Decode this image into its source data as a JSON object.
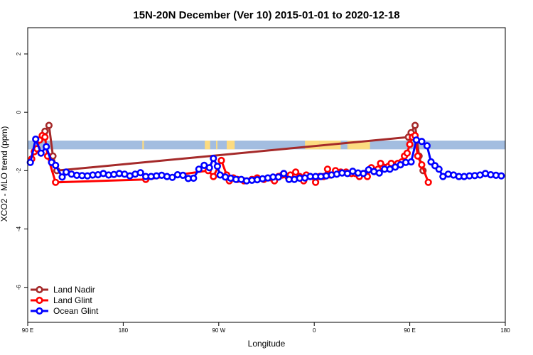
{
  "chart_data": {
    "type": "line",
    "title": "15N-20N December (Ver 10)   2015-01-01 to 2020-12-18",
    "xlabel": "Longitude",
    "ylabel": "XCO2 - MLO trend (ppm)",
    "xlim": [
      90,
      450
    ],
    "ylim": [
      -7.2,
      2.9
    ],
    "x_ticks": [
      {
        "value": 90,
        "label": "90 E"
      },
      {
        "value": 162,
        "label": "180"
      },
      {
        "value": 234,
        "label": "90 W"
      },
      {
        "value": 306,
        "label": "0"
      },
      {
        "value": 378,
        "label": "90 E"
      },
      {
        "value": 450,
        "label": "180"
      }
    ],
    "y_ticks": [
      {
        "value": 2,
        "label": "2"
      },
      {
        "value": 0,
        "label": "0"
      },
      {
        "value": -2,
        "label": "-2"
      },
      {
        "value": -4,
        "label": "-4"
      },
      {
        "value": -6,
        "label": "-6"
      }
    ],
    "background_band": {
      "y_center": -1.12,
      "y_half_height": 0.15,
      "ocean_color": "#a3bde0",
      "land_color": "#fcdb80",
      "land_segments": [
        [
          176.4,
          177.6
        ],
        [
          223.5,
          227.5
        ],
        [
          232,
          233
        ],
        [
          240,
          246
        ],
        [
          299,
          310
        ],
        [
          310,
          326
        ],
        [
          331,
          332
        ],
        [
          332,
          348
        ]
      ]
    },
    "series": [
      {
        "name": "Land Nadir",
        "color": "#a52a2a",
        "points": [
          [
            101,
            -0.8
          ],
          [
            103,
            -0.65
          ],
          [
            106,
            -0.45
          ],
          [
            109,
            -1.5
          ],
          [
            112,
            -2.0
          ],
          [
            377,
            -0.85
          ],
          [
            379,
            -0.7
          ],
          [
            382,
            -0.45
          ],
          [
            385,
            -1.5
          ],
          [
            388,
            -2.0
          ]
        ]
      },
      {
        "name": "Land Glint",
        "color": "#ff0000",
        "points": [
          [
            93,
            -1.6
          ],
          [
            95,
            -1.35
          ],
          [
            97,
            -1.25
          ],
          [
            99,
            -0.95
          ],
          [
            101,
            -0.8
          ],
          [
            103,
            -0.85
          ],
          [
            105,
            -1.5
          ],
          [
            111,
            -2.4
          ],
          [
            179,
            -2.3
          ],
          [
            226,
            -2.0
          ],
          [
            230,
            -2.2
          ],
          [
            236,
            -1.65
          ],
          [
            240,
            -2.15
          ],
          [
            242,
            -2.35
          ],
          [
            245,
            -2.25
          ],
          [
            248,
            -2.3
          ],
          [
            253,
            -2.35
          ],
          [
            259,
            -2.3
          ],
          [
            263,
            -2.25
          ],
          [
            268,
            -2.3
          ],
          [
            276,
            -2.35
          ],
          [
            279,
            -2.2
          ],
          [
            282,
            -2.15
          ],
          [
            286,
            -2.2
          ],
          [
            288,
            -2.15
          ],
          [
            292,
            -2.05
          ],
          [
            295,
            -2.2
          ],
          [
            298,
            -2.35
          ],
          [
            300,
            -2.15
          ],
          [
            303,
            -2.2
          ],
          [
            307,
            -2.4
          ],
          [
            310,
            -2.2
          ],
          [
            313,
            -2.2
          ],
          [
            316,
            -1.95
          ],
          [
            318,
            -2.15
          ],
          [
            322,
            -2.0
          ],
          [
            326,
            -2.05
          ],
          [
            330,
            -2.05
          ],
          [
            334,
            -2.1
          ],
          [
            337,
            -2.1
          ],
          [
            340,
            -2.2
          ],
          [
            344,
            -2.1
          ],
          [
            346,
            -2.2
          ],
          [
            349,
            -1.9
          ],
          [
            354,
            -1.95
          ],
          [
            356,
            -1.75
          ],
          [
            362,
            -1.85
          ],
          [
            364,
            -1.75
          ],
          [
            369,
            -1.75
          ],
          [
            372,
            -1.7
          ],
          [
            374,
            -1.5
          ],
          [
            376,
            -1.4
          ],
          [
            378,
            -1.1
          ],
          [
            380,
            -0.85
          ],
          [
            382,
            -0.8
          ],
          [
            384,
            -1.5
          ],
          [
            387,
            -1.8
          ],
          [
            392,
            -2.4
          ]
        ]
      },
      {
        "name": "Ocean Glint",
        "color": "#0000ff",
        "points": [
          [
            92,
            -1.72
          ],
          [
            96,
            -0.92
          ],
          [
            100,
            -1.4
          ],
          [
            104,
            -1.18
          ],
          [
            108,
            -1.72
          ],
          [
            111,
            -1.82
          ],
          [
            116,
            -2.22
          ],
          [
            119,
            -2.05
          ],
          [
            123,
            -2.12
          ],
          [
            127,
            -2.16
          ],
          [
            131,
            -2.17
          ],
          [
            135,
            -2.18
          ],
          [
            139,
            -2.15
          ],
          [
            143,
            -2.14
          ],
          [
            147,
            -2.1
          ],
          [
            151,
            -2.15
          ],
          [
            155,
            -2.13
          ],
          [
            159,
            -2.1
          ],
          [
            163,
            -2.12
          ],
          [
            167,
            -2.18
          ],
          [
            171,
            -2.12
          ],
          [
            175,
            -2.07
          ],
          [
            179,
            -2.2
          ],
          [
            183,
            -2.2
          ],
          [
            187,
            -2.18
          ],
          [
            191,
            -2.16
          ],
          [
            195,
            -2.2
          ],
          [
            199,
            -2.23
          ],
          [
            203,
            -2.14
          ],
          [
            207,
            -2.16
          ],
          [
            211,
            -2.27
          ],
          [
            215,
            -2.26
          ],
          [
            219,
            -1.95
          ],
          [
            223,
            -1.82
          ],
          [
            227,
            -1.9
          ],
          [
            230,
            -1.58
          ],
          [
            233,
            -1.85
          ],
          [
            235,
            -2.15
          ],
          [
            239,
            -2.22
          ],
          [
            243,
            -2.26
          ],
          [
            247,
            -2.3
          ],
          [
            251,
            -2.3
          ],
          [
            255,
            -2.35
          ],
          [
            259,
            -2.33
          ],
          [
            263,
            -2.31
          ],
          [
            267,
            -2.28
          ],
          [
            271,
            -2.25
          ],
          [
            275,
            -2.22
          ],
          [
            279,
            -2.22
          ],
          [
            283,
            -2.1
          ],
          [
            287,
            -2.3
          ],
          [
            291,
            -2.3
          ],
          [
            295,
            -2.26
          ],
          [
            299,
            -2.25
          ],
          [
            303,
            -2.2
          ],
          [
            307,
            -2.2
          ],
          [
            311,
            -2.2
          ],
          [
            315,
            -2.18
          ],
          [
            319,
            -2.15
          ],
          [
            323,
            -2.12
          ],
          [
            327,
            -2.08
          ],
          [
            331,
            -2.1
          ],
          [
            335,
            -2.02
          ],
          [
            339,
            -2.08
          ],
          [
            343,
            -2.1
          ],
          [
            347,
            -1.97
          ],
          [
            351,
            -2.03
          ],
          [
            355,
            -2.08
          ],
          [
            359,
            -1.95
          ],
          [
            363,
            -1.95
          ],
          [
            367,
            -1.88
          ],
          [
            371,
            -1.8
          ],
          [
            375,
            -1.72
          ],
          [
            379,
            -1.7
          ],
          [
            383,
            -0.95
          ],
          [
            387,
            -1.0
          ],
          [
            391,
            -1.15
          ],
          [
            394,
            -1.7
          ],
          [
            397,
            -1.83
          ],
          [
            400,
            -1.95
          ],
          [
            403,
            -2.2
          ],
          [
            407,
            -2.12
          ],
          [
            411,
            -2.15
          ],
          [
            415,
            -2.2
          ],
          [
            419,
            -2.2
          ],
          [
            423,
            -2.18
          ],
          [
            427,
            -2.17
          ],
          [
            431,
            -2.15
          ],
          [
            435,
            -2.1
          ],
          [
            439,
            -2.14
          ],
          [
            443,
            -2.16
          ],
          [
            447,
            -2.18
          ]
        ]
      }
    ],
    "legend": {
      "position": "bottom-left",
      "entries": [
        "Land Nadir",
        "Land Glint",
        "Ocean Glint"
      ]
    },
    "grid": false
  }
}
